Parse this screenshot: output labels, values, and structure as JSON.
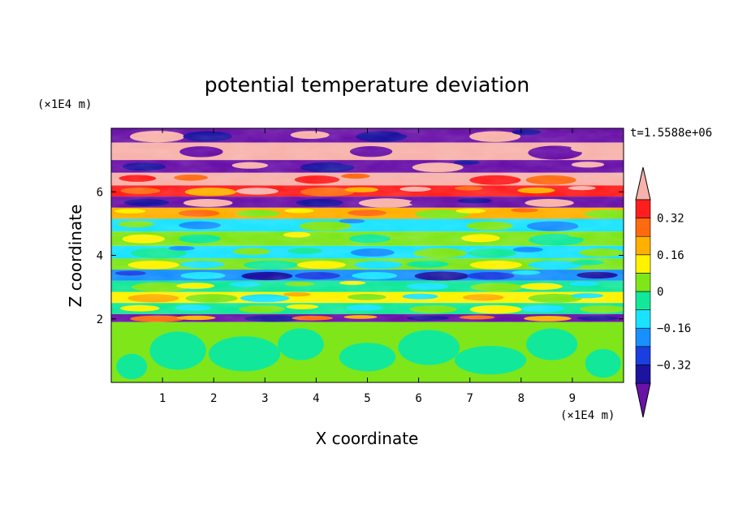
{
  "chart_data": {
    "type": "heatmap",
    "title": "potential temperature deviation",
    "xlabel": "X coordinate",
    "ylabel": "Z coordinate",
    "x_unit": "(×1E4 m)",
    "y_unit": "(×1E4 m)",
    "time_label": "t=1.5588e+06",
    "xlim": [
      0,
      10
    ],
    "ylim": [
      0,
      8
    ],
    "x_ticks": [
      1,
      2,
      3,
      4,
      5,
      6,
      7,
      8,
      9
    ],
    "y_ticks": [
      2,
      4,
      6
    ],
    "colorbar": {
      "levels": [
        -0.4,
        -0.32,
        -0.24,
        -0.16,
        -0.08,
        0,
        0.08,
        0.16,
        0.24,
        0.32,
        0.4
      ],
      "tick_labels": [
        "0.32",
        "0.16",
        "0",
        "−0.16",
        "−0.32"
      ],
      "tick_values": [
        0.32,
        0.16,
        0,
        -0.16,
        -0.32
      ],
      "colors": [
        "#6a12a8",
        "#1c14a0",
        "#1a3fe0",
        "#1890ff",
        "#19e3ff",
        "#12e89a",
        "#7fe61a",
        "#fff200",
        "#ffb000",
        "#ff6a10",
        "#ff1e1e",
        "#f7b2ab"
      ],
      "extend": "both"
    },
    "grid": false
  }
}
